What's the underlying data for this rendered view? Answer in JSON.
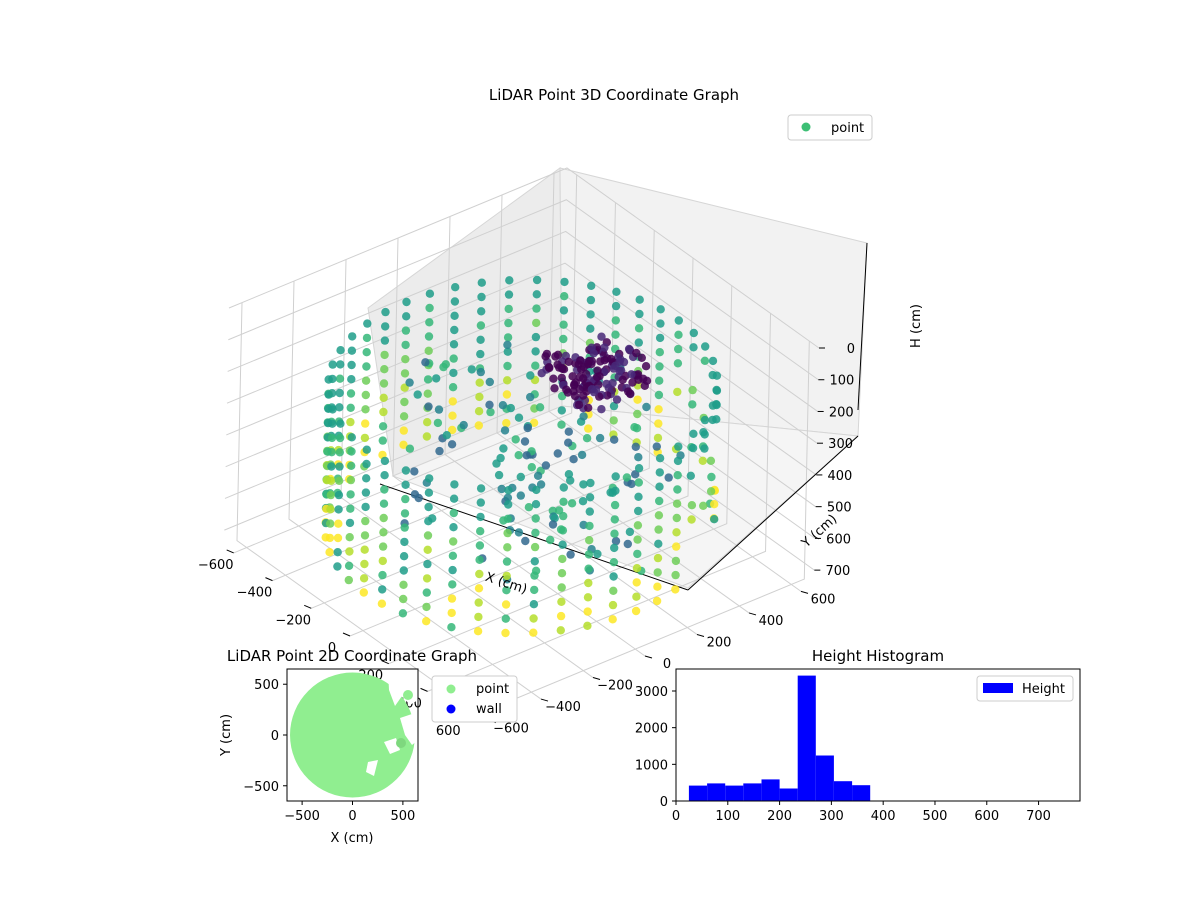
{
  "chart_data": [
    {
      "type": "scatter",
      "projection": "3d",
      "title": "LiDAR Point 3D Coordinate Graph",
      "xlabel": "X (cm)",
      "ylabel": "Y (cm)",
      "zlabel": "H (cm)",
      "xlim": [
        -650,
        650
      ],
      "ylim": [
        -650,
        650
      ],
      "zlim": [
        0,
        750
      ],
      "z_inverted": true,
      "xticks": [
        "−600",
        "−400",
        "−200",
        "0",
        "200",
        "400",
        "600"
      ],
      "yticks": [
        "−600",
        "−400",
        "−200",
        "0",
        "200",
        "400",
        "600"
      ],
      "zticks": [
        "0",
        "100",
        "200",
        "300",
        "400",
        "500",
        "600",
        "700"
      ],
      "colormap": "viridis",
      "legend": {
        "position": "top-right",
        "entries": [
          {
            "label": "point",
            "color": "#3dbf75"
          }
        ]
      },
      "grid": true,
      "data_description": "ring of points at radius ~600 cm and height ~250 cm (wall), plus a dense cluster near the origin at height ~250 cm and scattered points"
    },
    {
      "type": "scatter",
      "title": "LiDAR Point 2D Coordinate Graph",
      "xlabel": "X (cm)",
      "ylabel": "Y (cm)",
      "xlim": [
        -650,
        650
      ],
      "ylim": [
        -650,
        650
      ],
      "xticks": [
        "−500",
        "0",
        "500"
      ],
      "yticks": [
        "−500",
        "0",
        "500"
      ],
      "legend": {
        "position": "outside-right",
        "entries": [
          {
            "label": "point",
            "color": "#90ee90"
          },
          {
            "label": "wall",
            "color": "#0000ff"
          }
        ]
      },
      "point_region": {
        "shape": "disc",
        "center": [
          0,
          0
        ],
        "radius": 620
      }
    },
    {
      "type": "bar",
      "subtype": "histogram",
      "title": "Height Histogram",
      "xlabel": "",
      "ylabel": "",
      "xlim": [
        0,
        780
      ],
      "ylim": [
        0,
        3600
      ],
      "xticks": [
        "0",
        "100",
        "200",
        "300",
        "400",
        "500",
        "600",
        "700"
      ],
      "yticks": [
        "0",
        "1000",
        "2000",
        "3000"
      ],
      "legend": {
        "position": "top-right",
        "entries": [
          {
            "label": "Height",
            "color": "#0000ff"
          }
        ]
      },
      "bin_width": 35,
      "bins": [
        {
          "x0": 25,
          "x1": 60,
          "value": 420
        },
        {
          "x0": 60,
          "x1": 95,
          "value": 480
        },
        {
          "x0": 95,
          "x1": 130,
          "value": 420
        },
        {
          "x0": 130,
          "x1": 165,
          "value": 480
        },
        {
          "x0": 165,
          "x1": 200,
          "value": 590
        },
        {
          "x0": 200,
          "x1": 235,
          "value": 340
        },
        {
          "x0": 235,
          "x1": 270,
          "value": 3420
        },
        {
          "x0": 270,
          "x1": 305,
          "value": 1240
        },
        {
          "x0": 305,
          "x1": 340,
          "value": 540
        },
        {
          "x0": 340,
          "x1": 375,
          "value": 430
        }
      ],
      "bar_color": "#0000ff"
    }
  ]
}
